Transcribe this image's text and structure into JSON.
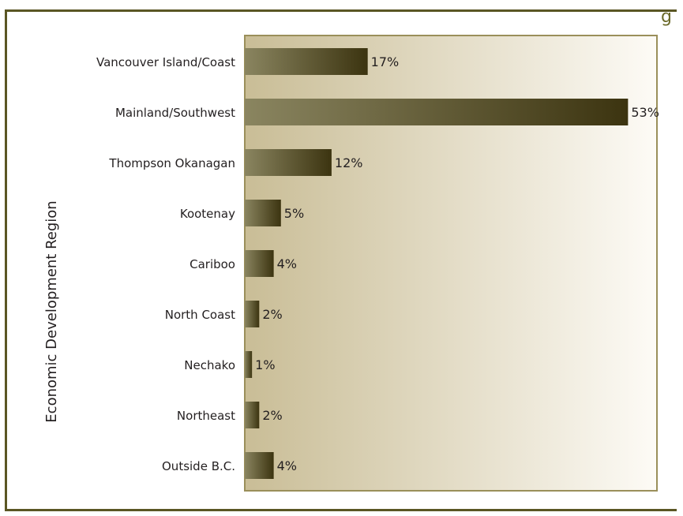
{
  "colors": {
    "frame": "#5a5624",
    "plot_bg_left": "#c9bd96",
    "plot_bg_right": "#fdfbf6",
    "plot_border": "#9a8f5a",
    "bar_light": "#8a8560",
    "bar_dark": "#3c3410"
  },
  "chart_data": {
    "type": "bar",
    "orientation": "horizontal",
    "title": "",
    "xlabel": "",
    "ylabel": "Economic Development Region",
    "categories": [
      "Vancouver Island/Coast",
      "Mainland/Southwest",
      "Thompson Okanagan",
      "Kootenay",
      "Cariboo",
      "North Coast",
      "Nechako",
      "Northeast",
      "Outside B.C."
    ],
    "values": [
      17,
      53,
      12,
      5,
      4,
      2,
      1,
      2,
      4
    ],
    "value_labels": [
      "17%",
      "53%",
      "12%",
      "5%",
      "4%",
      "2%",
      "1%",
      "2%",
      "4%"
    ],
    "xlim": [
      0,
      57
    ],
    "grid": false,
    "legend": "none"
  }
}
